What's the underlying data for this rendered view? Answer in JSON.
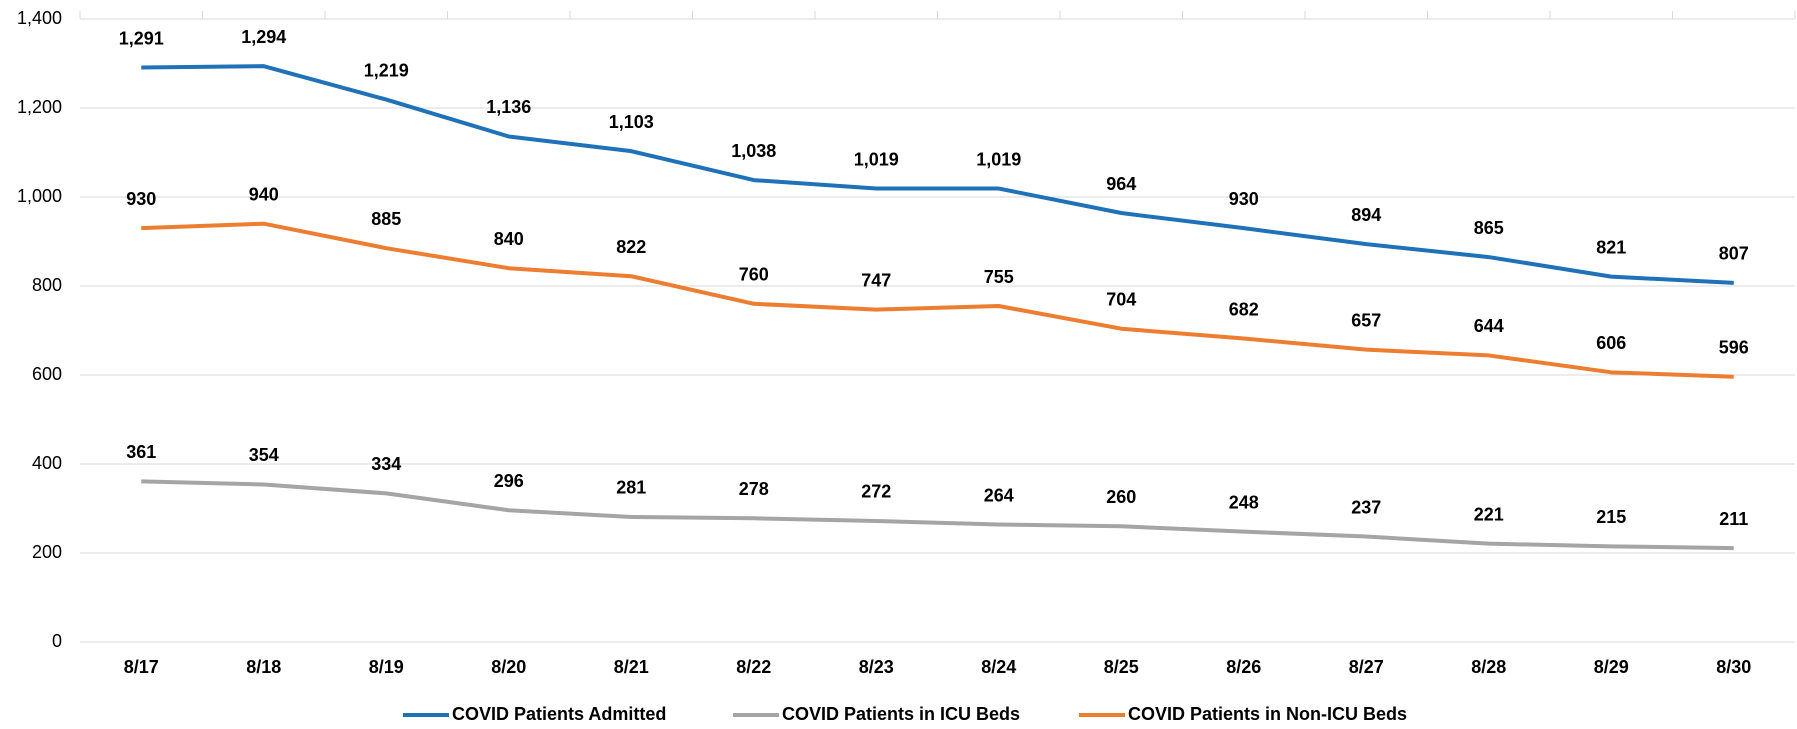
{
  "chart_data": {
    "type": "line",
    "categories": [
      "8/17",
      "8/18",
      "8/19",
      "8/20",
      "8/21",
      "8/22",
      "8/23",
      "8/24",
      "8/25",
      "8/26",
      "8/27",
      "8/28",
      "8/29",
      "8/30"
    ],
    "series": [
      {
        "name": "COVID Patients Admitted",
        "color": "#1f72b8",
        "values": [
          1291,
          1294,
          1219,
          1136,
          1103,
          1038,
          1019,
          1019,
          964,
          930,
          894,
          865,
          821,
          807
        ],
        "value_labels": [
          "1,291",
          "1,294",
          "1,219",
          "1,136",
          "1,103",
          "1,038",
          "1,019",
          "1,019",
          "964",
          "930",
          "894",
          "865",
          "821",
          "807"
        ]
      },
      {
        "name": "COVID Patients in ICU Beds",
        "color": "#a5a5a5",
        "values": [
          361,
          354,
          334,
          296,
          281,
          278,
          272,
          264,
          260,
          248,
          237,
          221,
          215,
          211
        ]
      },
      {
        "name": "COVID Patients in Non-ICU Beds",
        "color": "#ed7d31",
        "values": [
          930,
          940,
          885,
          840,
          822,
          760,
          747,
          755,
          704,
          682,
          657,
          644,
          606,
          596
        ]
      }
    ],
    "ylim": [
      0,
      1400
    ],
    "yticks": [
      0,
      200,
      400,
      600,
      800,
      {
        "value": 1000,
        "label": "1,000"
      },
      {
        "value": 1200,
        "label": "1,200"
      },
      {
        "value": 1400,
        "label": "1,400"
      }
    ],
    "grid": true
  }
}
